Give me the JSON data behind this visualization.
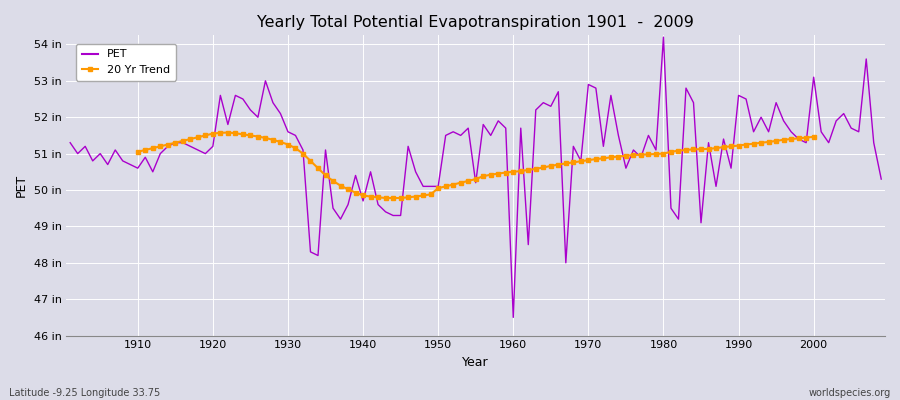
{
  "title": "Yearly Total Potential Evapotranspiration 1901  -  2009",
  "xlabel": "Year",
  "ylabel": "PET",
  "subtitle_left": "Latitude -9.25 Longitude 33.75",
  "subtitle_right": "worldspecies.org",
  "pet_color": "#aa00cc",
  "trend_color": "#ff9900",
  "background_color": "#dcdce8",
  "ylim": [
    46,
    54.25
  ],
  "yticks": [
    46,
    47,
    48,
    49,
    50,
    51,
    52,
    53,
    54
  ],
  "ytick_labels": [
    "46 in",
    "47 in",
    "48 in",
    "49 in",
    "50 in",
    "51 in",
    "52 in",
    "53 in",
    "54 in"
  ],
  "xticks": [
    1910,
    1920,
    1930,
    1940,
    1950,
    1960,
    1970,
    1980,
    1990,
    2000
  ],
  "years": [
    1901,
    1902,
    1903,
    1904,
    1905,
    1906,
    1907,
    1908,
    1909,
    1910,
    1911,
    1912,
    1913,
    1914,
    1915,
    1916,
    1917,
    1918,
    1919,
    1920,
    1921,
    1922,
    1923,
    1924,
    1925,
    1926,
    1927,
    1928,
    1929,
    1930,
    1931,
    1932,
    1933,
    1934,
    1935,
    1936,
    1937,
    1938,
    1939,
    1940,
    1941,
    1942,
    1943,
    1944,
    1945,
    1946,
    1947,
    1948,
    1949,
    1950,
    1951,
    1952,
    1953,
    1954,
    1955,
    1956,
    1957,
    1958,
    1959,
    1960,
    1961,
    1962,
    1963,
    1964,
    1965,
    1966,
    1967,
    1968,
    1969,
    1970,
    1971,
    1972,
    1973,
    1974,
    1975,
    1976,
    1977,
    1978,
    1979,
    1980,
    1981,
    1982,
    1983,
    1984,
    1985,
    1986,
    1987,
    1988,
    1989,
    1990,
    1991,
    1992,
    1993,
    1994,
    1995,
    1996,
    1997,
    1998,
    1999,
    2000,
    2001,
    2002,
    2003,
    2004,
    2005,
    2006,
    2007,
    2008,
    2009
  ],
  "pet_values": [
    51.3,
    51.0,
    51.2,
    50.8,
    51.0,
    50.7,
    51.1,
    50.8,
    50.7,
    50.6,
    50.9,
    50.5,
    51.0,
    51.2,
    51.3,
    51.3,
    51.2,
    51.1,
    51.0,
    51.2,
    52.6,
    51.8,
    52.6,
    52.5,
    52.2,
    52.0,
    53.0,
    52.4,
    52.1,
    51.6,
    51.5,
    51.1,
    48.3,
    48.2,
    51.1,
    49.5,
    49.2,
    49.6,
    50.4,
    49.7,
    50.5,
    49.6,
    49.4,
    49.3,
    49.3,
    51.2,
    50.5,
    50.1,
    50.1,
    50.1,
    51.5,
    51.6,
    51.5,
    51.7,
    50.2,
    51.8,
    51.5,
    51.9,
    51.7,
    46.5,
    51.7,
    48.5,
    52.2,
    52.4,
    52.3,
    52.7,
    48.0,
    51.2,
    50.8,
    52.9,
    52.8,
    51.2,
    52.6,
    51.5,
    50.6,
    51.1,
    50.9,
    51.5,
    51.1,
    54.2,
    49.5,
    49.2,
    52.8,
    52.4,
    49.1,
    51.3,
    50.1,
    51.4,
    50.6,
    52.6,
    52.5,
    51.6,
    52.0,
    51.6,
    52.4,
    51.9,
    51.6,
    51.4,
    51.3,
    53.1,
    51.6,
    51.3,
    51.9,
    52.1,
    51.7,
    51.6,
    53.6,
    51.3,
    50.3
  ],
  "trend_years": [
    1910,
    1911,
    1912,
    1913,
    1914,
    1915,
    1916,
    1917,
    1918,
    1919,
    1920,
    1921,
    1922,
    1923,
    1924,
    1925,
    1926,
    1927,
    1928,
    1929,
    1930,
    1931,
    1932,
    1933,
    1934,
    1935,
    1936,
    1937,
    1938,
    1939,
    1940,
    1941,
    1942,
    1943,
    1944,
    1945,
    1946,
    1947,
    1948,
    1949,
    1950,
    1951,
    1952,
    1953,
    1954,
    1955,
    1956,
    1957,
    1958,
    1959,
    1960,
    1961,
    1962,
    1963,
    1964,
    1965,
    1966,
    1967,
    1968,
    1969,
    1970,
    1971,
    1972,
    1973,
    1974,
    1975,
    1976,
    1977,
    1978,
    1979,
    1980,
    1981,
    1982,
    1983,
    1984,
    1985,
    1986,
    1987,
    1988,
    1989,
    1990,
    1991,
    1992,
    1993,
    1994,
    1995,
    1996,
    1997,
    1998,
    1999,
    2000
  ],
  "trend_values": [
    51.05,
    51.1,
    51.15,
    51.2,
    51.25,
    51.3,
    51.35,
    51.4,
    51.45,
    51.5,
    51.55,
    51.57,
    51.58,
    51.56,
    51.53,
    51.5,
    51.47,
    51.43,
    51.38,
    51.32,
    51.25,
    51.15,
    51.0,
    50.8,
    50.6,
    50.4,
    50.25,
    50.12,
    50.02,
    49.93,
    49.85,
    49.82,
    49.8,
    49.78,
    49.78,
    49.78,
    49.8,
    49.82,
    49.85,
    49.88,
    50.05,
    50.1,
    50.15,
    50.2,
    50.25,
    50.3,
    50.38,
    50.42,
    50.45,
    50.48,
    50.5,
    50.52,
    50.55,
    50.58,
    50.62,
    50.66,
    50.7,
    50.73,
    50.76,
    50.79,
    50.82,
    50.85,
    50.87,
    50.9,
    50.92,
    50.94,
    50.96,
    50.97,
    50.98,
    50.99,
    51.0,
    51.05,
    51.08,
    51.1,
    51.12,
    51.12,
    51.13,
    51.15,
    51.18,
    51.2,
    51.22,
    51.25,
    51.27,
    51.3,
    51.32,
    51.35,
    51.38,
    51.4,
    51.42,
    51.44,
    51.46
  ]
}
